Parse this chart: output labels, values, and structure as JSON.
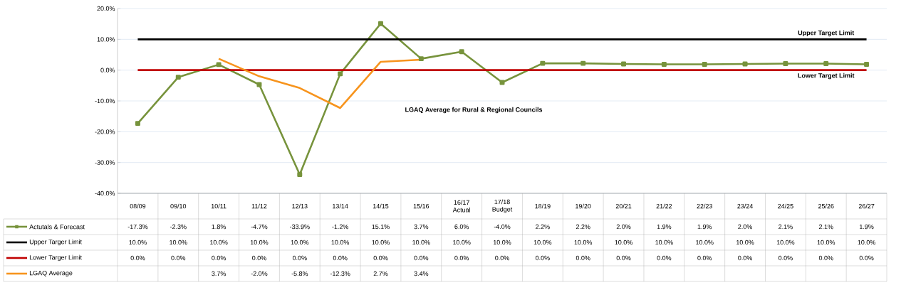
{
  "chart_data": {
    "type": "line",
    "categories": [
      "08/09",
      "09/10",
      "10/11",
      "11/12",
      "12/13",
      "13/14",
      "14/15",
      "15/16",
      "16/17 Actual",
      "17/18 Budget",
      "18/19",
      "19/20",
      "20/21",
      "21/22",
      "22/23",
      "23/24",
      "24/25",
      "25/26",
      "26/27"
    ],
    "series": [
      {
        "name": "Actutals & Forecast",
        "color": "#77933c",
        "marker": "square",
        "values": [
          -17.3,
          -2.3,
          1.8,
          -4.7,
          -33.9,
          -1.2,
          15.1,
          3.7,
          6.0,
          -4.0,
          2.2,
          2.2,
          2.0,
          1.9,
          1.9,
          2.0,
          2.1,
          2.1,
          1.9
        ],
        "value_labels": [
          "-17.3%",
          "-2.3%",
          "1.8%",
          "-4.7%",
          "-33.9%",
          "-1.2%",
          "15.1%",
          "3.7%",
          "6.0%",
          "-4.0%",
          "2.2%",
          "2.2%",
          "2.0%",
          "1.9%",
          "1.9%",
          "2.0%",
          "2.1%",
          "2.1%",
          "1.9%"
        ]
      },
      {
        "name": "Upper Targer Limit",
        "color": "#000000",
        "marker": "none",
        "values": [
          10,
          10,
          10,
          10,
          10,
          10,
          10,
          10,
          10,
          10,
          10,
          10,
          10,
          10,
          10,
          10,
          10,
          10,
          10
        ],
        "value_labels": [
          "10.0%",
          "10.0%",
          "10.0%",
          "10.0%",
          "10.0%",
          "10.0%",
          "10.0%",
          "10.0%",
          "10.0%",
          "10.0%",
          "10.0%",
          "10.0%",
          "10.0%",
          "10.0%",
          "10.0%",
          "10.0%",
          "10.0%",
          "10.0%",
          "10.0%"
        ]
      },
      {
        "name": "Lower Targer Limit",
        "color": "#c00000",
        "marker": "none",
        "values": [
          0,
          0,
          0,
          0,
          0,
          0,
          0,
          0,
          0,
          0,
          0,
          0,
          0,
          0,
          0,
          0,
          0,
          0,
          0
        ],
        "value_labels": [
          "0.0%",
          "0.0%",
          "0.0%",
          "0.0%",
          "0.0%",
          "0.0%",
          "0.0%",
          "0.0%",
          "0.0%",
          "0.0%",
          "0.0%",
          "0.0%",
          "0.0%",
          "0.0%",
          "0.0%",
          "0.0%",
          "0.0%",
          "0.0%",
          "0.0%"
        ]
      },
      {
        "name": "LGAQ Average",
        "color": "#f7941d",
        "marker": "none",
        "values": [
          null,
          null,
          3.7,
          -2.0,
          -5.8,
          -12.3,
          2.7,
          3.4,
          null,
          null,
          null,
          null,
          null,
          null,
          null,
          null,
          null,
          null,
          null
        ],
        "value_labels": [
          null,
          null,
          "3.7%",
          "-2.0%",
          "-5.8%",
          "-12.3%",
          "2.7%",
          "3.4%",
          null,
          null,
          null,
          null,
          null,
          null,
          null,
          null,
          null,
          null,
          null
        ]
      }
    ],
    "ylim": [
      -40,
      20
    ],
    "yticks": [
      {
        "value": -40,
        "label": "-40.0%"
      },
      {
        "value": -30,
        "label": "-30.0%"
      },
      {
        "value": -20,
        "label": "-20.0%"
      },
      {
        "value": -10,
        "label": "-10.0%"
      },
      {
        "value": 0,
        "label": "0.0%"
      },
      {
        "value": 10,
        "label": "10.0%"
      },
      {
        "value": 20,
        "label": "20.0%"
      }
    ],
    "grid": "y",
    "legend": "bottom",
    "annotations": [
      {
        "text": "Upper Target Limit",
        "x": "25/26",
        "y": 10
      },
      {
        "text": "Lower Target Limit",
        "x": "25/26",
        "y": 0
      },
      "LGAQ Average for Rural & Regional Councils"
    ]
  }
}
